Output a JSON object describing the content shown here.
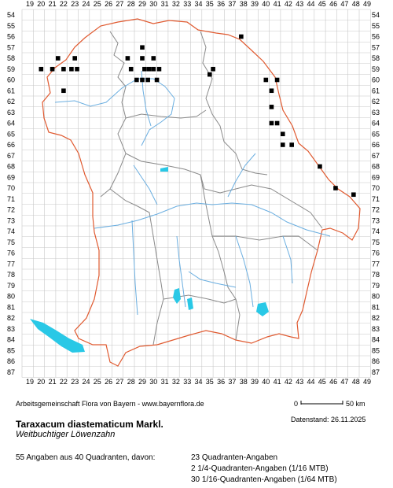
{
  "map": {
    "x_labels": [
      "19",
      "20",
      "21",
      "22",
      "23",
      "24",
      "25",
      "26",
      "27",
      "28",
      "29",
      "30",
      "31",
      "32",
      "33",
      "34",
      "35",
      "36",
      "37",
      "38",
      "39",
      "40",
      "41",
      "42",
      "43",
      "44",
      "45",
      "46",
      "47",
      "48",
      "49"
    ],
    "y_labels": [
      "54",
      "55",
      "56",
      "57",
      "58",
      "59",
      "60",
      "61",
      "62",
      "63",
      "64",
      "65",
      "66",
      "67",
      "68",
      "69",
      "70",
      "71",
      "72",
      "73",
      "74",
      "75",
      "76",
      "77",
      "78",
      "79",
      "80",
      "81",
      "82",
      "83",
      "84",
      "85",
      "86",
      "87"
    ],
    "colors": {
      "grid": "#c8c8c8",
      "border": "#e05a30",
      "districts": "#8a8a8a",
      "rivers": "#6aaee0",
      "lakes": "#29c8e6",
      "dots": "#000000"
    },
    "occurrences": [
      {
        "x": 20,
        "y": 59
      },
      {
        "x": 21,
        "y": 59
      },
      {
        "x": 21.5,
        "y": 58
      },
      {
        "x": 22,
        "y": 59
      },
      {
        "x": 23,
        "y": 58
      },
      {
        "x": 22.7,
        "y": 59
      },
      {
        "x": 23.2,
        "y": 59
      },
      {
        "x": 22,
        "y": 61
      },
      {
        "x": 27.7,
        "y": 58
      },
      {
        "x": 28,
        "y": 59
      },
      {
        "x": 28.5,
        "y": 60
      },
      {
        "x": 29,
        "y": 57
      },
      {
        "x": 29,
        "y": 58
      },
      {
        "x": 29.2,
        "y": 59
      },
      {
        "x": 29,
        "y": 60
      },
      {
        "x": 29.5,
        "y": 60
      },
      {
        "x": 29.6,
        "y": 59
      },
      {
        "x": 30,
        "y": 59
      },
      {
        "x": 30,
        "y": 58
      },
      {
        "x": 30.3,
        "y": 60
      },
      {
        "x": 30.5,
        "y": 59
      },
      {
        "x": 35.3,
        "y": 59
      },
      {
        "x": 35,
        "y": 59.5
      },
      {
        "x": 37.8,
        "y": 56
      },
      {
        "x": 40,
        "y": 60
      },
      {
        "x": 40.5,
        "y": 61
      },
      {
        "x": 41,
        "y": 60
      },
      {
        "x": 40.5,
        "y": 62.5
      },
      {
        "x": 40.5,
        "y": 64
      },
      {
        "x": 41,
        "y": 64
      },
      {
        "x": 41.5,
        "y": 65
      },
      {
        "x": 41.5,
        "y": 66
      },
      {
        "x": 42.3,
        "y": 66
      },
      {
        "x": 44.8,
        "y": 68
      },
      {
        "x": 46.2,
        "y": 70
      },
      {
        "x": 47.8,
        "y": 70.6
      }
    ]
  },
  "footer": {
    "credit": "Arbeitsgemeinschaft Flora von Bayern - www.bayernflora.de",
    "scale_min": "0",
    "scale_max": "50 km",
    "date": "Datenstand: 26.11.2025",
    "title": "Taraxacum diastematicum Markl.",
    "subtitle": "Weitbuchtiger Löwenzahn",
    "summary": "55 Angaben aus 40 Quadranten, davon:",
    "stats": [
      "23 Quadranten-Angaben",
      "2 1/4-Quadranten-Angaben (1/16 MTB)",
      "30 1/16-Quadranten-Angaben (1/64 MTB)"
    ]
  }
}
